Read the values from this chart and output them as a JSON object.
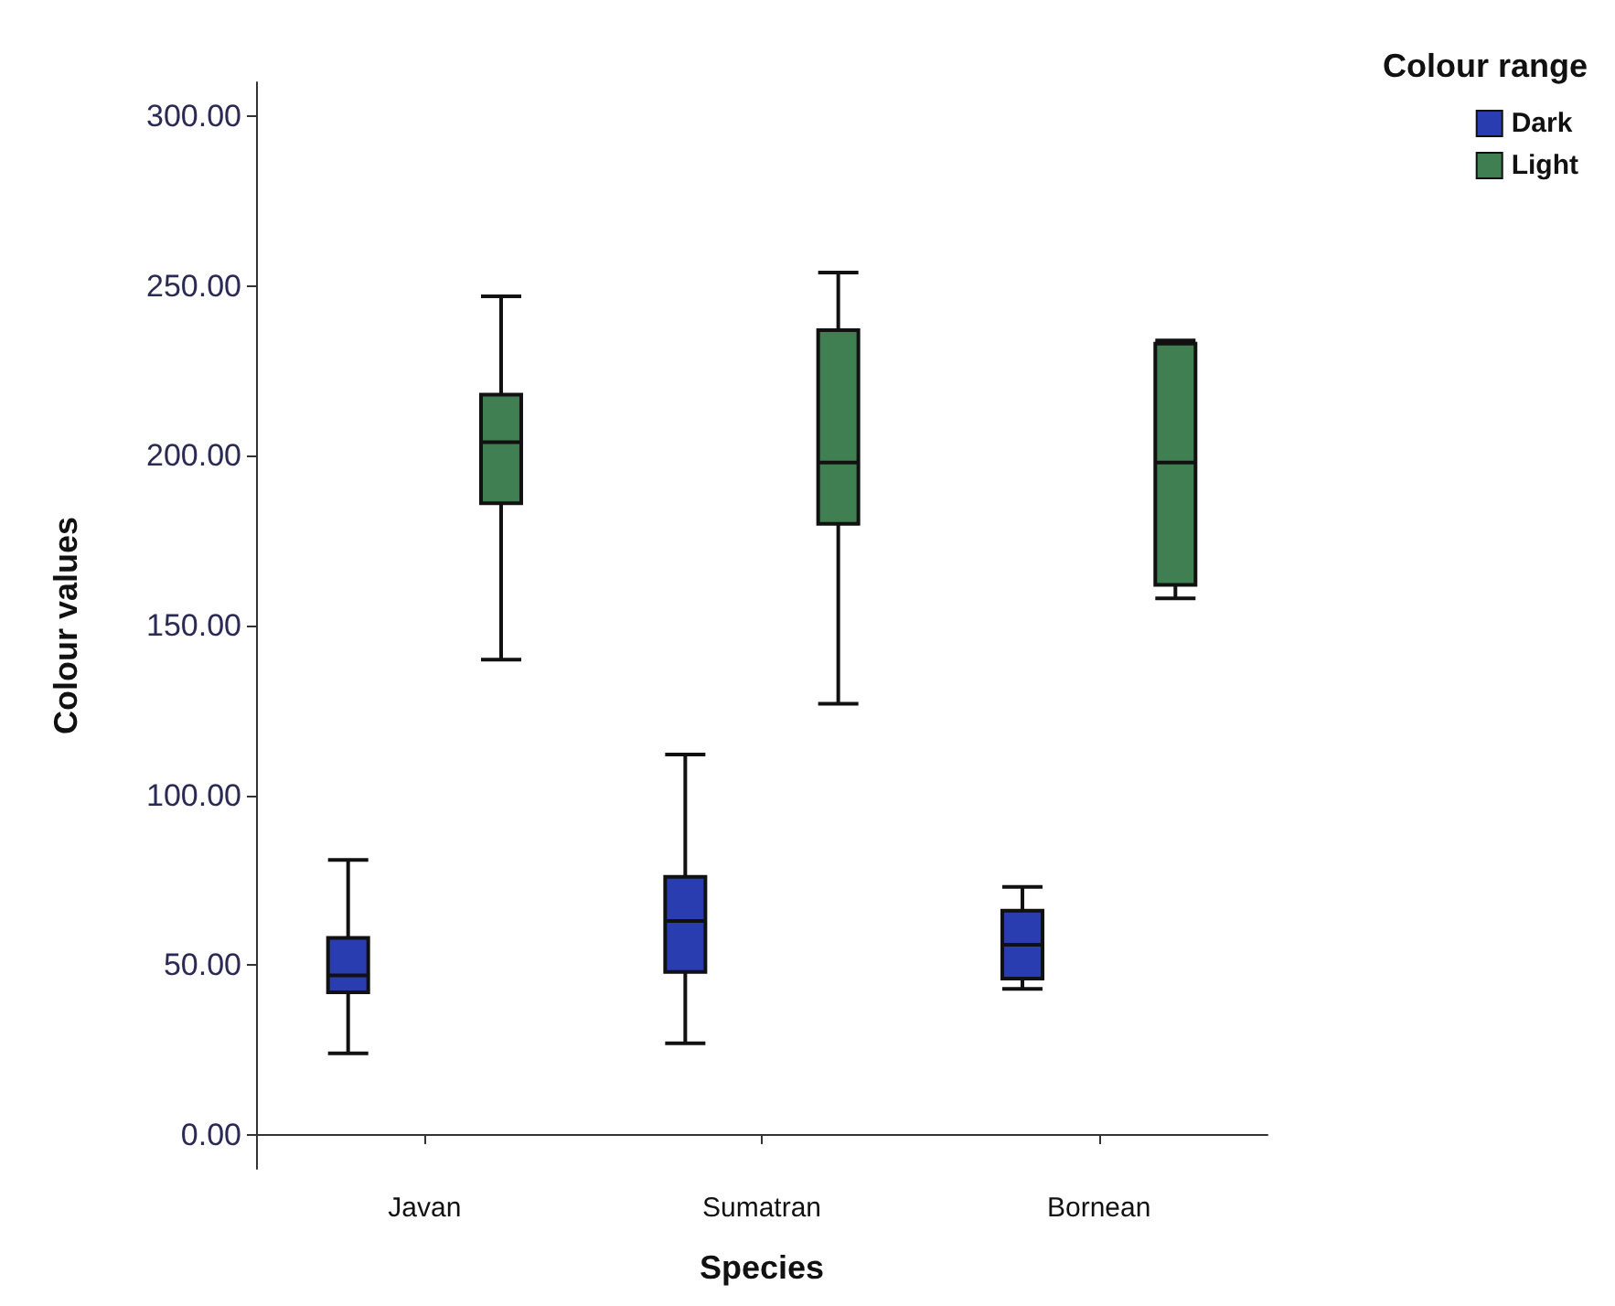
{
  "chart_data": {
    "type": "box",
    "xlabel": "Species",
    "ylabel": "Colour values",
    "legend_title": "Colour range",
    "legend": "top right",
    "grid": false,
    "categories": [
      "Javan",
      "Sumatran",
      "Bornean"
    ],
    "ylim": [
      -10,
      310
    ],
    "yticks": [
      {
        "value": 0,
        "label": "0.00"
      },
      {
        "value": 50,
        "label": "50.00"
      },
      {
        "value": 100,
        "label": "100.00"
      },
      {
        "value": 150,
        "label": "150.00"
      },
      {
        "value": 200,
        "label": "200.00"
      },
      {
        "value": 250,
        "label": "250.00"
      },
      {
        "value": 300,
        "label": "300.00"
      }
    ],
    "series": [
      {
        "name": "Dark",
        "color": "#2a3db0",
        "boxes": [
          {
            "low": 24,
            "q1": 42,
            "median": 47,
            "q3": 58,
            "high": 81
          },
          {
            "low": 27,
            "q1": 48,
            "median": 63,
            "q3": 76,
            "high": 112
          },
          {
            "low": 43,
            "q1": 46,
            "median": 56,
            "q3": 66,
            "high": 73
          }
        ]
      },
      {
        "name": "Light",
        "color": "#3f7f52",
        "boxes": [
          {
            "low": 140,
            "q1": 186,
            "median": 204,
            "q3": 218,
            "high": 247
          },
          {
            "low": 127,
            "q1": 180,
            "median": 198,
            "q3": 237,
            "high": 254
          },
          {
            "low": 158,
            "q1": 162,
            "median": 198,
            "q3": 233,
            "high": 234
          }
        ]
      }
    ]
  }
}
